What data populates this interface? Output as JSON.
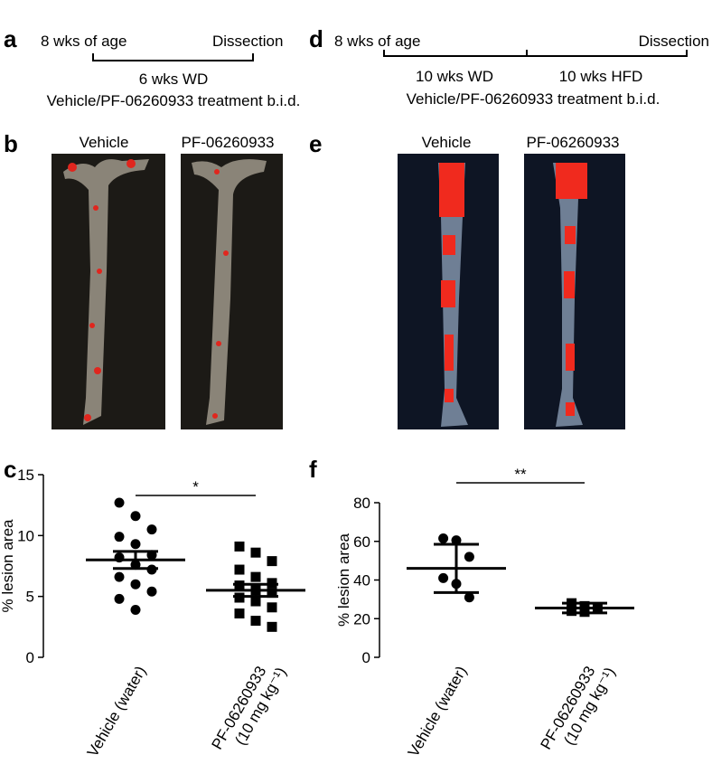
{
  "panel_labels": [
    "a",
    "b",
    "c",
    "d",
    "e",
    "f"
  ],
  "timeline_a": {
    "start": "8 wks of age",
    "end": "Dissection",
    "periods": [
      "6 wks WD"
    ],
    "treatment": "Vehicle/PF-06260933 treatment b.i.d."
  },
  "timeline_d": {
    "start": "8 wks of age",
    "end": "Dissection",
    "periods": [
      "10 wks WD",
      "10 wks HFD"
    ],
    "treatment": "Vehicle/PF-06260933 treatment b.i.d."
  },
  "images_b": {
    "labels": [
      "Vehicle",
      "PF-06260933"
    ]
  },
  "images_e": {
    "labels": [
      "Vehicle",
      "PF-06260933"
    ]
  },
  "chart_data": [
    {
      "type": "dotplot",
      "ylabel": "% lesion area",
      "categories": [
        "Vehicle (water)",
        "PF-06260933\n(10 mg kg⁻¹)"
      ],
      "values": [
        [
          12.7,
          11.6,
          10.5,
          9.9,
          9.3,
          8.4,
          8.2,
          7.6,
          7.2,
          6.6,
          6.0,
          5.4,
          4.8,
          3.9
        ],
        [
          9.1,
          8.6,
          7.9,
          7.2,
          6.6,
          6.1,
          5.9,
          5.5,
          5.3,
          4.9,
          4.6,
          4.1,
          3.6,
          3.0,
          2.5
        ]
      ],
      "means": [
        8.0,
        5.5
      ],
      "errors": [
        0.7,
        0.5
      ],
      "markers": [
        "circle",
        "square"
      ],
      "color": "#000000",
      "annotation": "*",
      "ylim": [
        0,
        15
      ],
      "yticks": [
        0,
        5,
        10,
        15
      ]
    },
    {
      "type": "dotplot",
      "ylabel": "% lesion area",
      "categories": [
        "Vehicle (water)",
        "PF-06260933\n(10 mg kg⁻¹)"
      ],
      "values": [
        [
          61.5,
          60.5,
          52,
          41,
          38,
          31
        ],
        [
          28,
          26.5,
          25.5,
          24,
          23.5
        ]
      ],
      "means": [
        46,
        25.5
      ],
      "errors": [
        12.5,
        2.5
      ],
      "markers": [
        "circle",
        "square"
      ],
      "color": "#000000",
      "annotation": "**",
      "ylim": [
        0,
        80
      ],
      "yticks": [
        0,
        20,
        40,
        60,
        80
      ]
    }
  ]
}
